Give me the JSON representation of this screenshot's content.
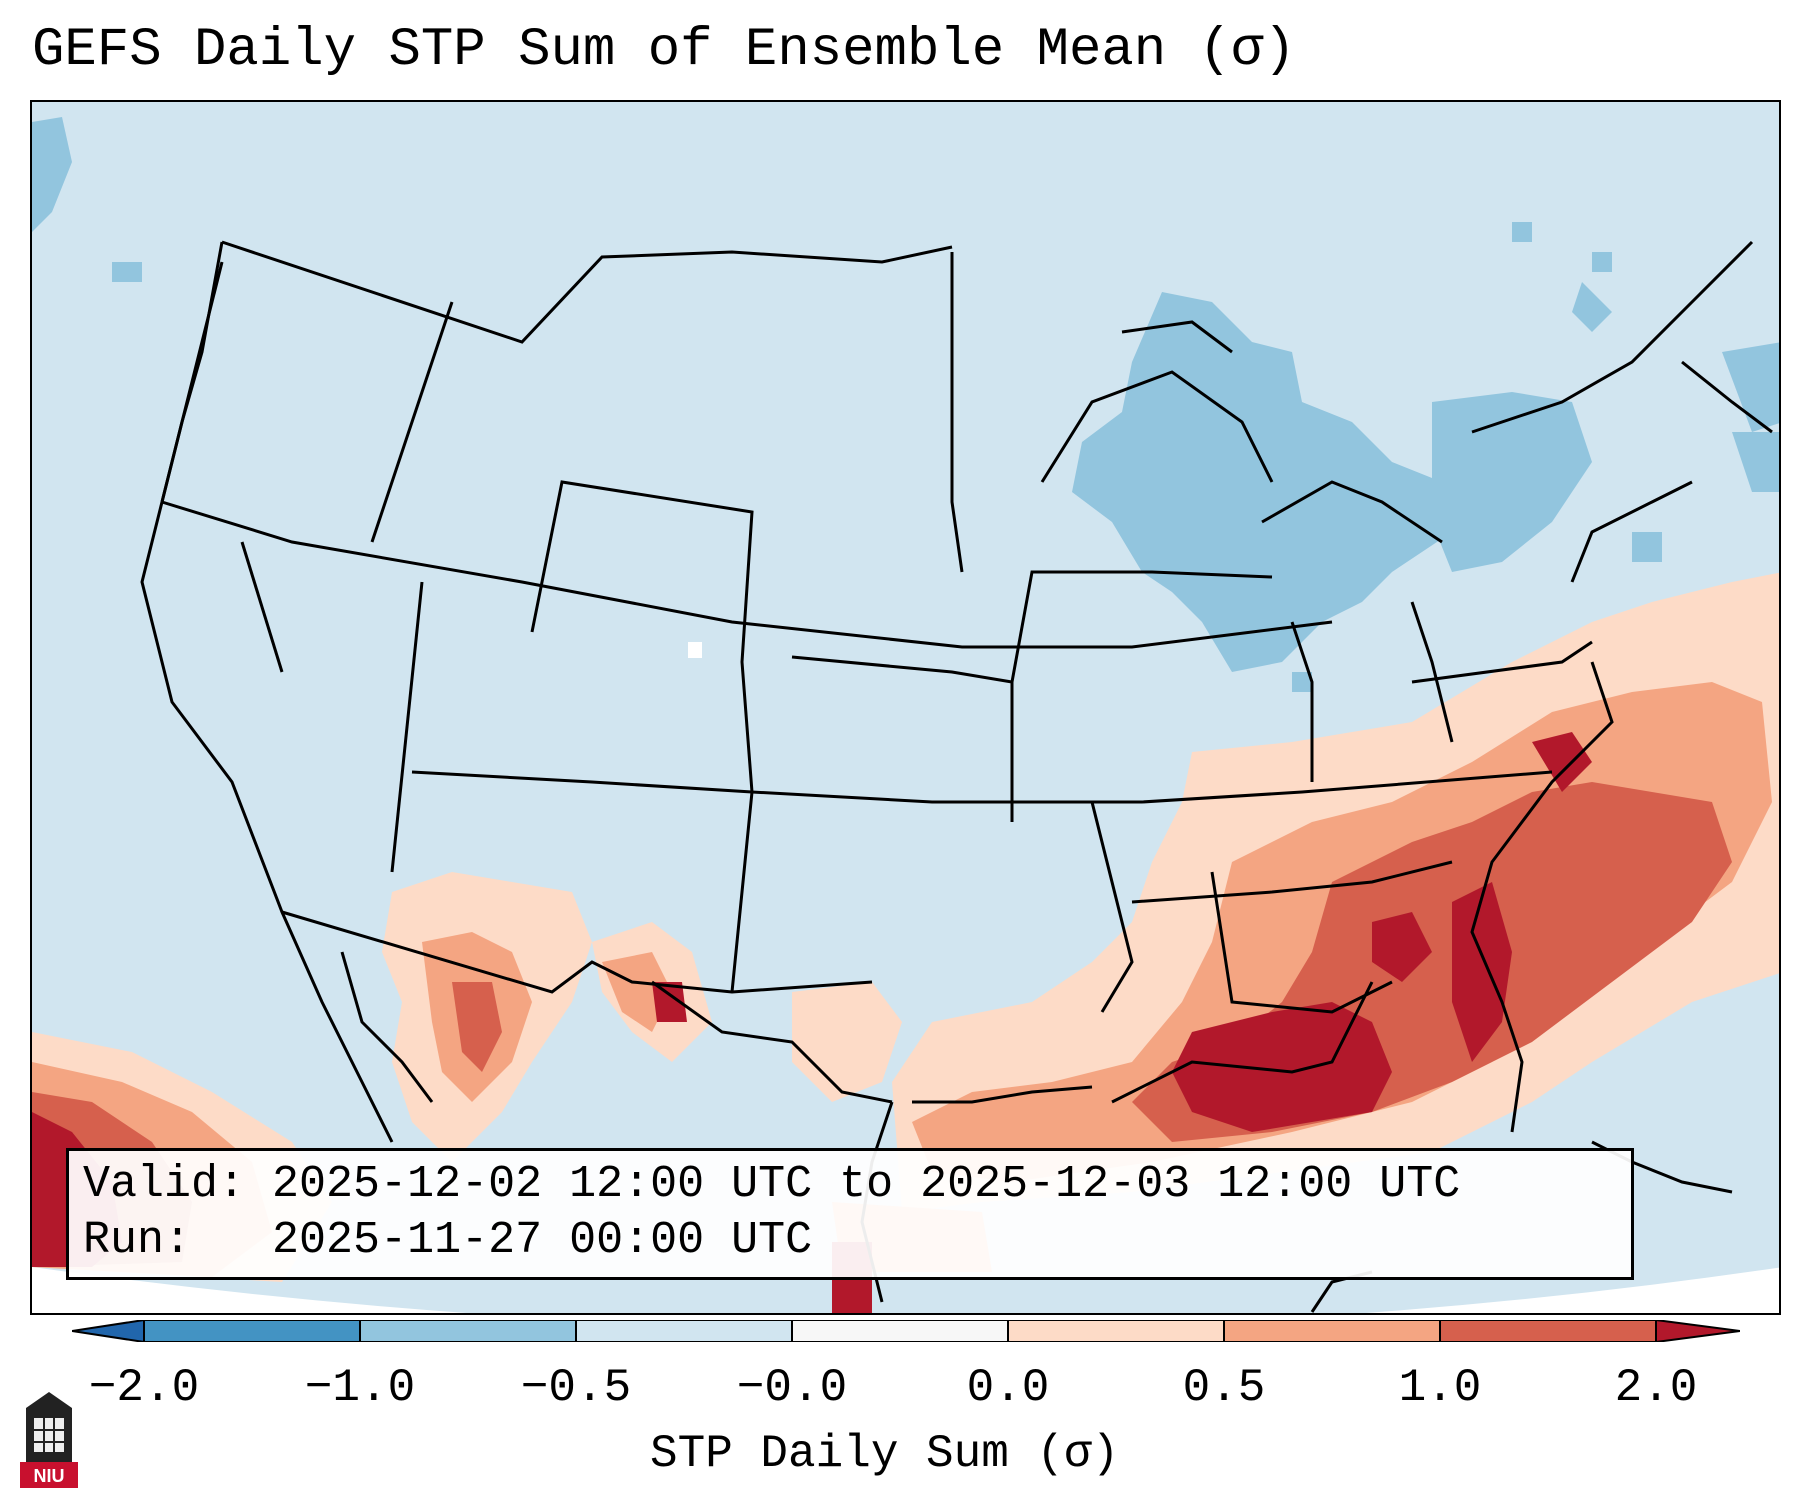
{
  "title": "GEFS Daily STP Sum of Ensemble Mean (σ)",
  "info": {
    "valid_label": "Valid:",
    "valid_value": "2025-12-02 12:00 UTC to 2025-12-03 12:00 UTC",
    "run_label": "Run:",
    "run_value": "2025-11-27 00:00 UTC"
  },
  "colorbar": {
    "title": "STP Daily Sum (σ)",
    "ticks": [
      "−2.0",
      "−1.0",
      "−0.5",
      "−0.0",
      "0.0",
      "0.5",
      "1.0",
      "2.0"
    ],
    "colors": {
      "lt_-2": "#2166ac",
      "bin_-2_-1": "#4393c3",
      "bin_-1_-0.5": "#92c5de",
      "bin_-0.5_0": "#d1e5f0",
      "bin_0_0": "#f7f7f7",
      "bin_0_0.5": "#fddbc7",
      "bin_0.5_1": "#f4a582",
      "bin_1_2": "#d6604d",
      "gt_2": "#b2182b"
    }
  },
  "logo": {
    "text": "NIU",
    "icon": "niu-tower-logo-icon"
  }
}
